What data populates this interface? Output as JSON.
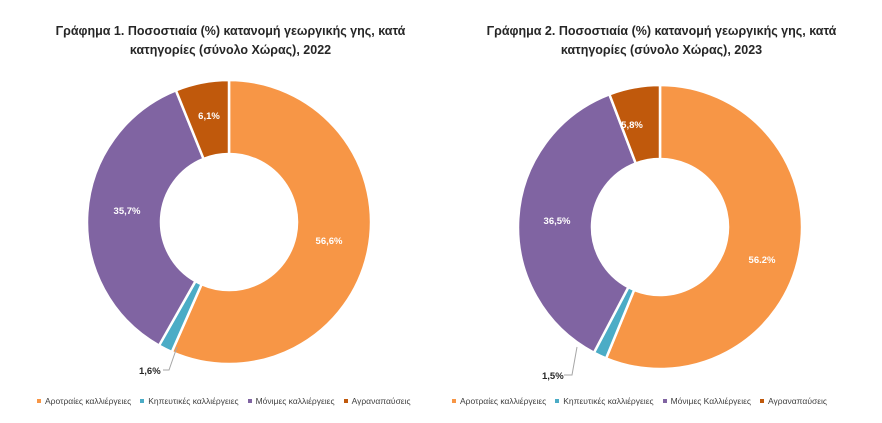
{
  "chart_data": [
    {
      "type": "pie",
      "title_line1": "Γράφημα 1. Ποσοστιαία (%) κατανομή γεωργικής γης, κατά",
      "title_line2": "κατηγορίες (σύνολο Χώρας), 2022",
      "categories": [
        "Αροτραίες καλλιέργειες",
        "Κηπευτικές καλλιέργειες",
        "Μόνιμες καλλιέργειες",
        "Αγραναπαύσεις"
      ],
      "values": [
        56.6,
        1.6,
        35.7,
        6.1
      ],
      "labels": [
        "56,6%",
        "1,6%",
        "35,7%",
        "6,1%"
      ],
      "colors": [
        "#F79646",
        "#4BACC6",
        "#8064A2",
        "#C0590C"
      ],
      "legend_position": "bottom"
    },
    {
      "type": "pie",
      "title_line1": "Γράφημα 2. Ποσοστιαία (%) κατανομή γεωργικής γης, κατά",
      "title_line2": "κατηγορίες (σύνολο Χώρας), 2023",
      "categories": [
        "Αροτραίες καλλιέργειες",
        "Κηπευτικές καλλιέργειες",
        "Μόνιμες Καλλιέργειες",
        "Αγραναπαύσεις"
      ],
      "values": [
        56.2,
        1.5,
        36.5,
        5.8
      ],
      "labels": [
        "56.2%",
        "1,5%",
        "36,5%",
        "5,8%"
      ],
      "colors": [
        "#F79646",
        "#4BACC6",
        "#8064A2",
        "#C0590C"
      ],
      "legend_position": "bottom"
    }
  ]
}
